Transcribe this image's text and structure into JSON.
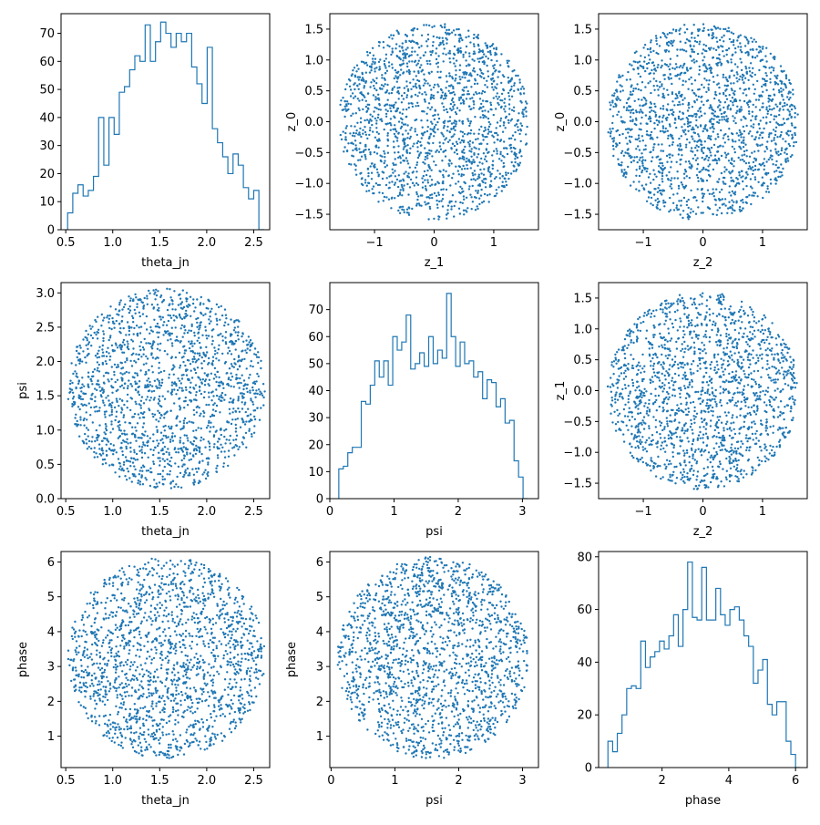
{
  "figure": {
    "background": "#ffffff",
    "mark_color": "#1f77b4"
  },
  "chart_data": [
    {
      "type": "histogram",
      "row": 0,
      "col": 0,
      "xlabel": "theta_jn",
      "ylabel": "",
      "xlim": [
        0.45,
        2.67
      ],
      "ylim": [
        0,
        77
      ],
      "xticks": [
        0.5,
        1.0,
        1.5,
        2.0,
        2.5
      ],
      "xtick_labels": [
        "0.5",
        "1.0",
        "1.5",
        "2.0",
        "2.5"
      ],
      "yticks": [
        0,
        10,
        20,
        30,
        40,
        50,
        60,
        70
      ],
      "ytick_labels": [
        "0",
        "10",
        "20",
        "30",
        "40",
        "50",
        "60",
        "70"
      ],
      "bin_start": 0.52,
      "bin_end": 2.61,
      "counts": [
        6,
        13,
        16,
        12,
        14,
        19,
        40,
        23,
        40,
        34,
        49,
        51,
        57,
        62,
        60,
        73,
        60,
        67,
        74,
        70,
        65,
        70,
        67,
        70,
        58,
        52,
        45,
        65,
        36,
        31,
        26,
        20,
        27,
        23,
        15,
        11,
        14,
        0
      ]
    },
    {
      "type": "scatter",
      "row": 0,
      "col": 1,
      "xlabel": "z_1",
      "ylabel": "z_0",
      "xlim": [
        -1.75,
        1.75
      ],
      "ylim": [
        -1.75,
        1.75
      ],
      "xticks": [
        -1,
        0,
        1
      ],
      "xtick_labels": [
        "−1",
        "0",
        "1"
      ],
      "yticks": [
        -1.5,
        -1.0,
        -0.5,
        0.0,
        0.5,
        1.0,
        1.5
      ],
      "ytick_labels": [
        "−1.5",
        "−1.0",
        "−0.5",
        "0.0",
        "0.5",
        "1.0",
        "1.5"
      ],
      "disk": {
        "center": [
          0,
          0
        ],
        "radius": [
          1.6,
          1.6
        ]
      },
      "n_points": 1700,
      "seed": 11
    },
    {
      "type": "scatter",
      "row": 0,
      "col": 2,
      "xlabel": "z_2",
      "ylabel": "z_0",
      "xlim": [
        -1.75,
        1.75
      ],
      "ylim": [
        -1.75,
        1.75
      ],
      "xticks": [
        -1,
        0,
        1
      ],
      "xtick_labels": [
        "−1",
        "0",
        "1"
      ],
      "yticks": [
        -1.5,
        -1.0,
        -0.5,
        0.0,
        0.5,
        1.0,
        1.5
      ],
      "ytick_labels": [
        "−1.5",
        "−1.0",
        "−0.5",
        "0.0",
        "0.5",
        "1.0",
        "1.5"
      ],
      "disk": {
        "center": [
          0,
          0
        ],
        "radius": [
          1.6,
          1.6
        ]
      },
      "n_points": 1700,
      "seed": 23
    },
    {
      "type": "scatter",
      "row": 1,
      "col": 0,
      "xlabel": "theta_jn",
      "ylabel": "psi",
      "xlim": [
        0.45,
        2.67
      ],
      "ylim": [
        0.0,
        3.15
      ],
      "xticks": [
        0.5,
        1.0,
        1.5,
        2.0,
        2.5
      ],
      "xtick_labels": [
        "0.5",
        "1.0",
        "1.5",
        "2.0",
        "2.5"
      ],
      "yticks": [
        0.0,
        0.5,
        1.0,
        1.5,
        2.0,
        2.5,
        3.0
      ],
      "ytick_labels": [
        "0.0",
        "0.5",
        "1.0",
        "1.5",
        "2.0",
        "2.5",
        "3.0"
      ],
      "disk": {
        "center": [
          1.57,
          1.6
        ],
        "radius": [
          1.05,
          1.46
        ]
      },
      "n_points": 1700,
      "seed": 37
    },
    {
      "type": "histogram",
      "row": 1,
      "col": 1,
      "xlabel": "psi",
      "ylabel": "",
      "xlim": [
        0.0,
        3.25
      ],
      "ylim": [
        0,
        80
      ],
      "xticks": [
        0,
        1,
        2,
        3
      ],
      "xtick_labels": [
        "0",
        "1",
        "2",
        "3"
      ],
      "yticks": [
        0,
        10,
        20,
        30,
        40,
        50,
        60,
        70
      ],
      "ytick_labels": [
        "0",
        "10",
        "20",
        "30",
        "40",
        "50",
        "60",
        "70"
      ],
      "bin_start": 0.14,
      "bin_end": 3.08,
      "counts": [
        11,
        12,
        17,
        19,
        19,
        36,
        35,
        42,
        51,
        45,
        51,
        42,
        60,
        55,
        58,
        68,
        48,
        50,
        54,
        49,
        60,
        50,
        55,
        52,
        76,
        60,
        49,
        58,
        50,
        51,
        45,
        47,
        37,
        44,
        43,
        34,
        37,
        28,
        29,
        14,
        8,
        0
      ]
    },
    {
      "type": "scatter",
      "row": 1,
      "col": 2,
      "xlabel": "z_2",
      "ylabel": "z_1",
      "xlim": [
        -1.75,
        1.75
      ],
      "ylim": [
        -1.75,
        1.75
      ],
      "xticks": [
        -1,
        0,
        1
      ],
      "xtick_labels": [
        "−1",
        "0",
        "1"
      ],
      "yticks": [
        -1.5,
        -1.0,
        -0.5,
        0.0,
        0.5,
        1.0,
        1.5
      ],
      "ytick_labels": [
        "−1.5",
        "−1.0",
        "−0.5",
        "0.0",
        "0.5",
        "1.0",
        "1.5"
      ],
      "disk": {
        "center": [
          0,
          0
        ],
        "radius": [
          1.6,
          1.6
        ]
      },
      "n_points": 1700,
      "seed": 51
    },
    {
      "type": "scatter",
      "row": 2,
      "col": 0,
      "xlabel": "theta_jn",
      "ylabel": "phase",
      "xlim": [
        0.45,
        2.67
      ],
      "ylim": [
        0.1,
        6.3
      ],
      "xticks": [
        0.5,
        1.0,
        1.5,
        2.0,
        2.5
      ],
      "xtick_labels": [
        "0.5",
        "1.0",
        "1.5",
        "2.0",
        "2.5"
      ],
      "yticks": [
        1,
        2,
        3,
        4,
        5,
        6
      ],
      "ytick_labels": [
        "1",
        "2",
        "3",
        "4",
        "5",
        "6"
      ],
      "disk": {
        "center": [
          1.57,
          3.25
        ],
        "radius": [
          1.05,
          2.9
        ]
      },
      "n_points": 1700,
      "seed": 67
    },
    {
      "type": "scatter",
      "row": 2,
      "col": 1,
      "xlabel": "psi",
      "ylabel": "phase",
      "xlim": [
        -0.02,
        3.25
      ],
      "ylim": [
        0.1,
        6.3
      ],
      "xticks": [
        0,
        1,
        2,
        3
      ],
      "xtick_labels": [
        "0",
        "1",
        "2",
        "3"
      ],
      "yticks": [
        1,
        2,
        3,
        4,
        5,
        6
      ],
      "ytick_labels": [
        "1",
        "2",
        "3",
        "4",
        "5",
        "6"
      ],
      "disk": {
        "center": [
          1.6,
          3.25
        ],
        "radius": [
          1.5,
          2.9
        ]
      },
      "n_points": 1700,
      "seed": 79
    },
    {
      "type": "histogram",
      "row": 2,
      "col": 2,
      "xlabel": "phase",
      "ylabel": "",
      "xlim": [
        0.1,
        6.35
      ],
      "ylim": [
        0,
        82
      ],
      "xticks": [
        2,
        4,
        6
      ],
      "xtick_labels": [
        "2",
        "4",
        "6"
      ],
      "yticks": [
        0,
        20,
        40,
        60,
        80
      ],
      "ytick_labels": [
        "0",
        "20",
        "40",
        "60",
        "80"
      ],
      "bin_start": 0.38,
      "bin_end": 6.14,
      "counts": [
        10,
        6,
        13,
        20,
        30,
        31,
        30,
        48,
        38,
        42,
        44,
        48,
        45,
        50,
        58,
        46,
        60,
        78,
        57,
        56,
        76,
        56,
        56,
        68,
        58,
        54,
        60,
        61,
        56,
        50,
        46,
        32,
        37,
        41,
        24,
        20,
        25,
        25,
        10,
        5,
        0
      ]
    }
  ]
}
